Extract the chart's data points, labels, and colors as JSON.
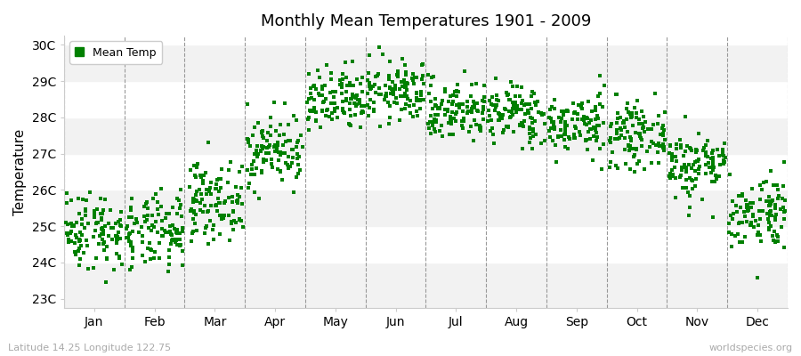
{
  "title": "Monthly Mean Temperatures 1901 - 2009",
  "ylabel": "Temperature",
  "xlabel_labels": [
    "Jan",
    "Feb",
    "Mar",
    "Apr",
    "May",
    "Jun",
    "Jul",
    "Aug",
    "Sep",
    "Oct",
    "Nov",
    "Dec"
  ],
  "ytick_labels": [
    "23C",
    "24C",
    "25C",
    "26C",
    "27C",
    "28C",
    "29C",
    "30C"
  ],
  "ytick_values": [
    23,
    24,
    25,
    26,
    27,
    28,
    29,
    30
  ],
  "ylim": [
    22.75,
    30.25
  ],
  "legend_label": "Mean Temp",
  "marker_color": "#008000",
  "fig_bg_color": "#ffffff",
  "plot_bg_color": "#ffffff",
  "band_colors": [
    "#f2f2f2",
    "#ffffff"
  ],
  "footer_left": "Latitude 14.25 Longitude 122.75",
  "footer_right": "worldspecies.org",
  "years": 109,
  "start_year": 1901,
  "end_year": 2009,
  "monthly_means": [
    24.9,
    24.8,
    25.7,
    27.1,
    28.4,
    28.7,
    28.2,
    28.1,
    27.8,
    27.5,
    26.7,
    25.4
  ],
  "monthly_stds": [
    0.55,
    0.52,
    0.52,
    0.5,
    0.45,
    0.42,
    0.42,
    0.42,
    0.42,
    0.42,
    0.48,
    0.52
  ]
}
